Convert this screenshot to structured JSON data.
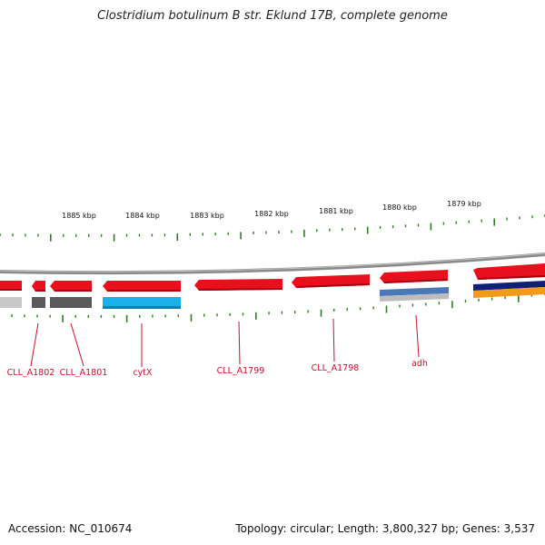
{
  "title": "Clostridium botulinum B str. Eklund 17B, complete genome",
  "accession_text": "Accession: NC_010674",
  "summary_text": "Topology: circular; Length: 3,800,327 bp; Genes: 3,537",
  "kbp_labels": [
    "1885 kbp",
    "1884 kbp",
    "1883 kbp",
    "1882 kbp",
    "1881 kbp",
    "1880 kbp",
    "1879 kbp"
  ],
  "gene_labels": [
    "CLL_A1802",
    "CLL_A1801",
    "cytX",
    "CLL_A1799",
    "CLL_A1798",
    "adh"
  ],
  "colors": {
    "tick": "#2e7d1f",
    "backbone": "#808080",
    "gene_red": "#e8101c",
    "gene_dark": "#5a5a5a",
    "gene_light": "#bdbdbd",
    "gene_cyan": "#1ab0e8",
    "gene_steel": "#4a78b8",
    "gene_navy": "#10207a",
    "gene_orange": "#f29a1a",
    "label_line": "#c8102e"
  }
}
